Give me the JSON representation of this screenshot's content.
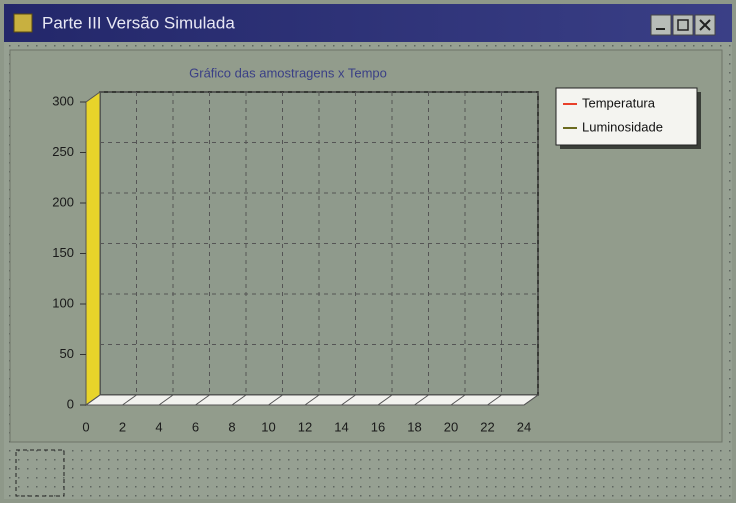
{
  "window_title": "Parte III  Versão Simulada",
  "chart_data": {
    "type": "line",
    "title": "Gráfico das amostragens x Tempo",
    "series": [
      {
        "name": "Temperatura",
        "color": "#e8402a",
        "values": []
      },
      {
        "name": "Luminosidade",
        "color": "#6b6a1e",
        "values": []
      }
    ],
    "x": [],
    "xlim": [
      0,
      24
    ],
    "xticks": [
      0,
      2,
      4,
      6,
      8,
      10,
      12,
      14,
      16,
      18,
      20,
      22,
      24
    ],
    "ylim": [
      0,
      300
    ],
    "yticks": [
      0,
      50,
      100,
      150,
      200,
      250,
      300
    ],
    "grid": true,
    "legend": "top-right"
  }
}
